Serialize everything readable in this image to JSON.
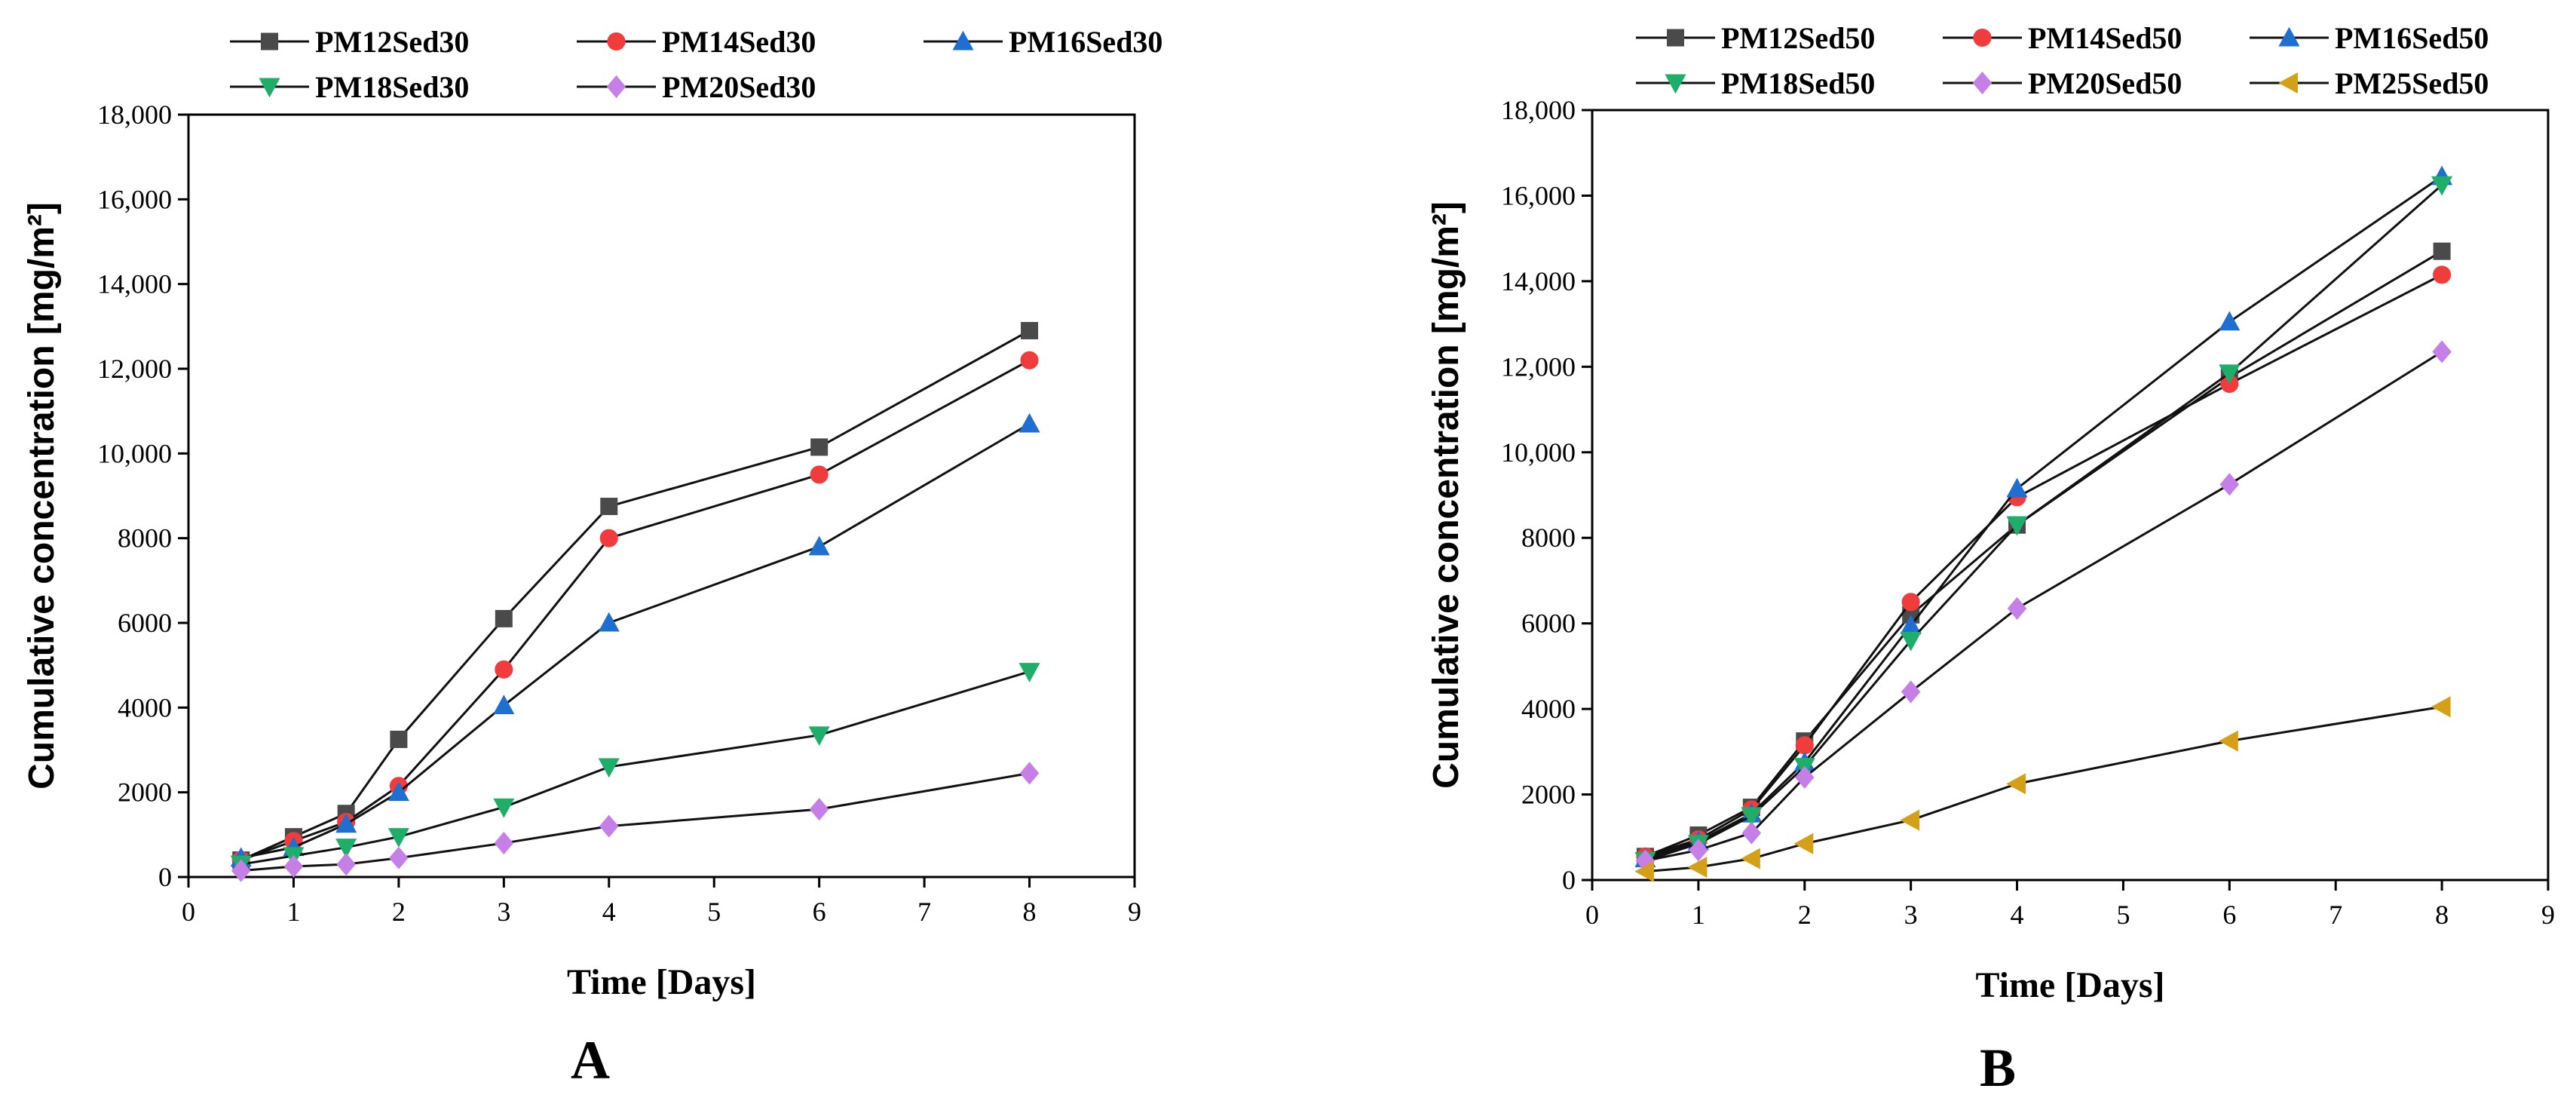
{
  "chart_data": [
    {
      "type": "line",
      "panel_label": "A",
      "xlabel": "Time [Days]",
      "ylabel": "Cumulative concentration [mg/m²]",
      "xlim": [
        0,
        9
      ],
      "ylim": [
        0,
        18000
      ],
      "x_ticks": [
        0,
        1,
        2,
        3,
        4,
        5,
        6,
        7,
        8,
        9
      ],
      "x_tick_labels": [
        "0",
        "1",
        "2",
        "3",
        "4",
        "5",
        "6",
        "7",
        "8",
        "9"
      ],
      "y_ticks": [
        0,
        2000,
        4000,
        6000,
        8000,
        10000,
        12000,
        14000,
        16000,
        18000
      ],
      "y_tick_labels": [
        "0",
        "2000",
        "4000",
        "6000",
        "8000",
        "10,000",
        "12,000",
        "14,000",
        "16,000",
        "18,000"
      ],
      "grid": false,
      "legend_position": "top",
      "x": [
        0.5,
        1,
        1.5,
        2,
        3,
        4,
        6,
        8
      ],
      "series": [
        {
          "name": "PM12Sed30",
          "marker": "square",
          "color": "#4a4a4a",
          "values": [
            400,
            950,
            1500,
            3250,
            6100,
            8750,
            10150,
            12900
          ]
        },
        {
          "name": "PM14Sed30",
          "marker": "circle",
          "color": "#f03c3c",
          "values": [
            400,
            850,
            1300,
            2150,
            4900,
            8000,
            9500,
            12200
          ]
        },
        {
          "name": "PM16Sed30",
          "marker": "triangle-up",
          "color": "#1f6fd1",
          "values": [
            450,
            700,
            1250,
            2000,
            4050,
            6000,
            7800,
            10700
          ]
        },
        {
          "name": "PM18Sed30",
          "marker": "triangle-down",
          "color": "#1fae6a",
          "values": [
            300,
            500,
            700,
            950,
            1650,
            2600,
            3350,
            4850
          ]
        },
        {
          "name": "PM20Sed30",
          "marker": "diamond",
          "color": "#c77fe8",
          "values": [
            150,
            250,
            300,
            450,
            800,
            1200,
            1600,
            2450
          ]
        }
      ]
    },
    {
      "type": "line",
      "panel_label": "B",
      "xlabel": "Time [Days]",
      "ylabel": "Cumulative concentration [mg/m²]",
      "xlim": [
        0,
        9
      ],
      "ylim": [
        0,
        18000
      ],
      "x_ticks": [
        0,
        1,
        2,
        3,
        4,
        5,
        6,
        7,
        8,
        9
      ],
      "x_tick_labels": [
        "0",
        "1",
        "2",
        "3",
        "4",
        "5",
        "6",
        "7",
        "8",
        "9"
      ],
      "y_ticks": [
        0,
        2000,
        4000,
        6000,
        8000,
        10000,
        12000,
        14000,
        16000,
        18000
      ],
      "y_tick_labels": [
        "0",
        "2000",
        "4000",
        "6000",
        "8000",
        "10,000",
        "12,000",
        "14,000",
        "16,000",
        "18,000"
      ],
      "grid": false,
      "legend_position": "top",
      "x": [
        0.5,
        1,
        1.5,
        2,
        3,
        4,
        6,
        8
      ],
      "series": [
        {
          "name": "PM12Sed50",
          "marker": "square",
          "color": "#4a4a4a",
          "values": [
            550,
            1050,
            1700,
            3250,
            6200,
            8300,
            11750,
            14700
          ]
        },
        {
          "name": "PM14Sed50",
          "marker": "circle",
          "color": "#f03c3c",
          "values": [
            550,
            950,
            1650,
            3150,
            6500,
            8950,
            11600,
            14150
          ]
        },
        {
          "name": "PM16Sed50",
          "marker": "triangle-up",
          "color": "#1f6fd1",
          "values": [
            500,
            900,
            1550,
            2750,
            5950,
            9150,
            13050,
            16450
          ]
        },
        {
          "name": "PM18Sed50",
          "marker": "triangle-down",
          "color": "#1fae6a",
          "values": [
            450,
            850,
            1500,
            2650,
            5600,
            8300,
            11850,
            16250
          ]
        },
        {
          "name": "PM20Sed50",
          "marker": "diamond",
          "color": "#c77fe8",
          "values": [
            450,
            700,
            1100,
            2400,
            4400,
            6350,
            9250,
            12350
          ]
        },
        {
          "name": "PM25Sed50",
          "marker": "triangle-left",
          "color": "#d4a017",
          "values": [
            200,
            300,
            500,
            850,
            1400,
            2250,
            3250,
            4050
          ]
        }
      ]
    }
  ]
}
